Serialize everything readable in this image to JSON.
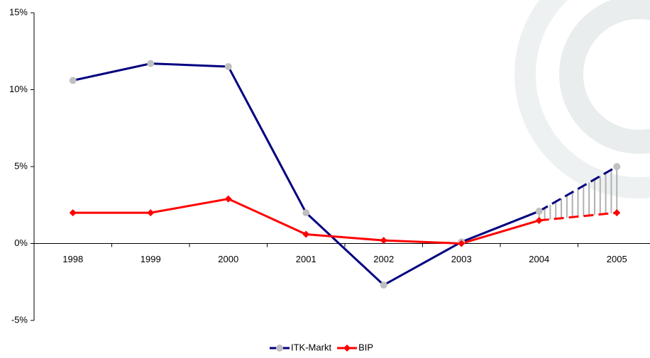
{
  "chart_data": {
    "type": "line",
    "categories": [
      "1998",
      "1999",
      "2000",
      "2001",
      "2002",
      "2003",
      "2004",
      "2005"
    ],
    "series": [
      {
        "name": "ITK-Markt",
        "color": "#000080",
        "marker": "circle",
        "marker_color": "#c0c0c0",
        "values": [
          10.6,
          11.7,
          11.5,
          2.0,
          -2.7,
          0.1,
          2.1,
          5.0
        ]
      },
      {
        "name": "BIP",
        "color": "#ff0000",
        "marker": "diamond",
        "marker_color": "#ff0000",
        "values": [
          2.0,
          2.0,
          2.9,
          0.6,
          0.2,
          0.0,
          1.5,
          2.0
        ]
      }
    ],
    "ylim": [
      -5,
      15
    ],
    "yticks": [
      {
        "value": -5,
        "label": "-5%"
      },
      {
        "value": 0,
        "label": "0%"
      },
      {
        "value": 5,
        "label": "5%"
      },
      {
        "value": 10,
        "label": "10%"
      },
      {
        "value": 15,
        "label": "15%"
      }
    ],
    "dashed_from": "2004",
    "hatch_between_series": true,
    "legend": "bottom"
  }
}
